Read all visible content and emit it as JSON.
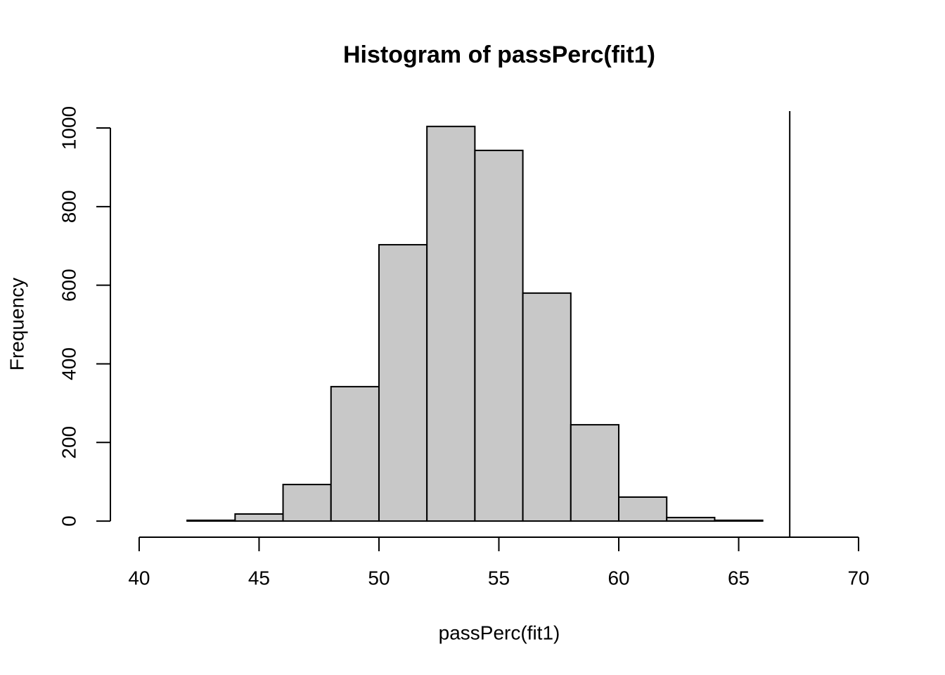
{
  "chart_data": {
    "type": "histogram",
    "title": "Histogram of passPerc(fit1)",
    "x_label": "passPerc(fit1)",
    "y_label": "Frequency",
    "bins": [
      42,
      44,
      46,
      48,
      50,
      52,
      54,
      56,
      58,
      60,
      62,
      64,
      66
    ],
    "counts": [
      2,
      18,
      93,
      342,
      703,
      1004,
      943,
      580,
      245,
      61,
      9,
      2
    ],
    "color": "#c8c8c8",
    "xlim": [
      38.8,
      71.2
    ],
    "xticks": [
      40,
      45,
      50,
      55,
      60,
      65,
      70
    ],
    "ylim": [
      -41,
      1043
    ],
    "yticks": [
      0,
      200,
      400,
      600,
      800,
      1000
    ],
    "vline": 67.13
  }
}
